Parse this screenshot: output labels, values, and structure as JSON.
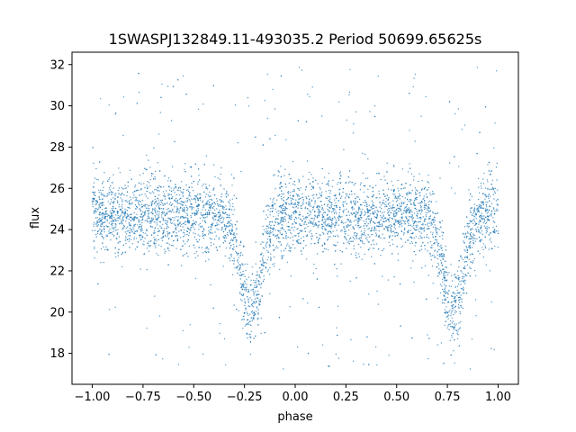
{
  "chart_data": {
    "type": "scatter",
    "title": "1SWASPJ132849.11-493035.2 Period 50699.65625s",
    "xlabel": "phase",
    "ylabel": "flux",
    "xlim": [
      -1.1,
      1.1
    ],
    "ylim": [
      16.5,
      32.6
    ],
    "xticks": [
      -1.0,
      -0.75,
      -0.5,
      -0.25,
      0.0,
      0.25,
      0.5,
      0.75,
      1.0
    ],
    "xtick_labels": [
      "−1.00",
      "−0.75",
      "−0.50",
      "−0.25",
      "0.00",
      "0.25",
      "0.50",
      "0.75",
      "1.00"
    ],
    "yticks": [
      18,
      20,
      22,
      24,
      26,
      28,
      30,
      32
    ],
    "ytick_labels": [
      "18",
      "20",
      "22",
      "24",
      "26",
      "28",
      "30",
      "32"
    ],
    "grid": false,
    "point_color": "#1f77b4",
    "series": [
      {
        "baseline_flux": 24.7,
        "baseline_spread": 1.0,
        "phase_range": [
          -1.0,
          1.0
        ],
        "eclipse_centers": [
          -0.22,
          0.78
        ],
        "eclipse_min_flux": 20.0,
        "eclipse_half_width": 0.07,
        "outlier_range": [
          17.2,
          31.9
        ],
        "sample_points": [
          {
            "x": -1.0,
            "y": 24.7
          },
          {
            "x": -0.75,
            "y": 24.8
          },
          {
            "x": -0.5,
            "y": 24.7
          },
          {
            "x": -0.3,
            "y": 23.8
          },
          {
            "x": -0.22,
            "y": 20.0
          },
          {
            "x": -0.15,
            "y": 23.6
          },
          {
            "x": 0.0,
            "y": 24.6
          },
          {
            "x": 0.25,
            "y": 24.7
          },
          {
            "x": 0.5,
            "y": 24.7
          },
          {
            "x": 0.7,
            "y": 23.7
          },
          {
            "x": 0.78,
            "y": 20.0
          },
          {
            "x": 0.85,
            "y": 23.5
          },
          {
            "x": 1.0,
            "y": 24.6
          }
        ]
      }
    ]
  }
}
